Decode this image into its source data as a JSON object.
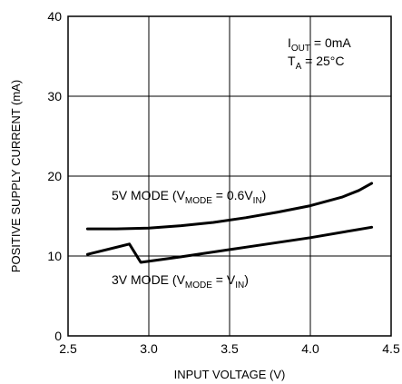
{
  "chart_data": {
    "type": "line",
    "title": "",
    "xlabel": "INPUT VOLTAGE (V)",
    "ylabel": "POSITIVE SUPPLY CURRENT (mA)",
    "xlim": [
      2.5,
      4.5
    ],
    "ylim": [
      0,
      40
    ],
    "xticks": [
      2.5,
      3.0,
      3.5,
      4.0,
      4.5
    ],
    "xtick_labels": [
      "2.5",
      "3.0",
      "3.5",
      "4.0",
      "4.5"
    ],
    "yticks": [
      0,
      10,
      20,
      30,
      40
    ],
    "ytick_labels": [
      "0",
      "10",
      "20",
      "30",
      "40"
    ],
    "grid": true,
    "annotations": {
      "iout": {
        "base": "I",
        "sub": "OUT",
        "rest": " = 0mA"
      },
      "ta": {
        "base": "T",
        "sub": "A",
        "rest": " = 25°C"
      }
    },
    "series": [
      {
        "label": {
          "pre": "5V MODE (V",
          "sub1": "MODE",
          "mid": " = 0.6V",
          "sub2": "IN",
          "post": ")"
        },
        "x": [
          2.62,
          2.8,
          3.0,
          3.2,
          3.4,
          3.6,
          3.8,
          4.0,
          4.2,
          4.3,
          4.38
        ],
        "y": [
          13.4,
          13.4,
          13.5,
          13.8,
          14.2,
          14.8,
          15.5,
          16.3,
          17.4,
          18.2,
          19.1
        ]
      },
      {
        "label": {
          "pre": "3V MODE (V",
          "sub1": "MODE",
          "mid": " = V",
          "sub2": "IN",
          "post": ")"
        },
        "x": [
          2.62,
          2.88,
          2.95,
          3.2,
          3.6,
          4.0,
          4.38
        ],
        "y": [
          10.2,
          11.5,
          9.2,
          9.9,
          11.1,
          12.3,
          13.6
        ]
      }
    ]
  }
}
